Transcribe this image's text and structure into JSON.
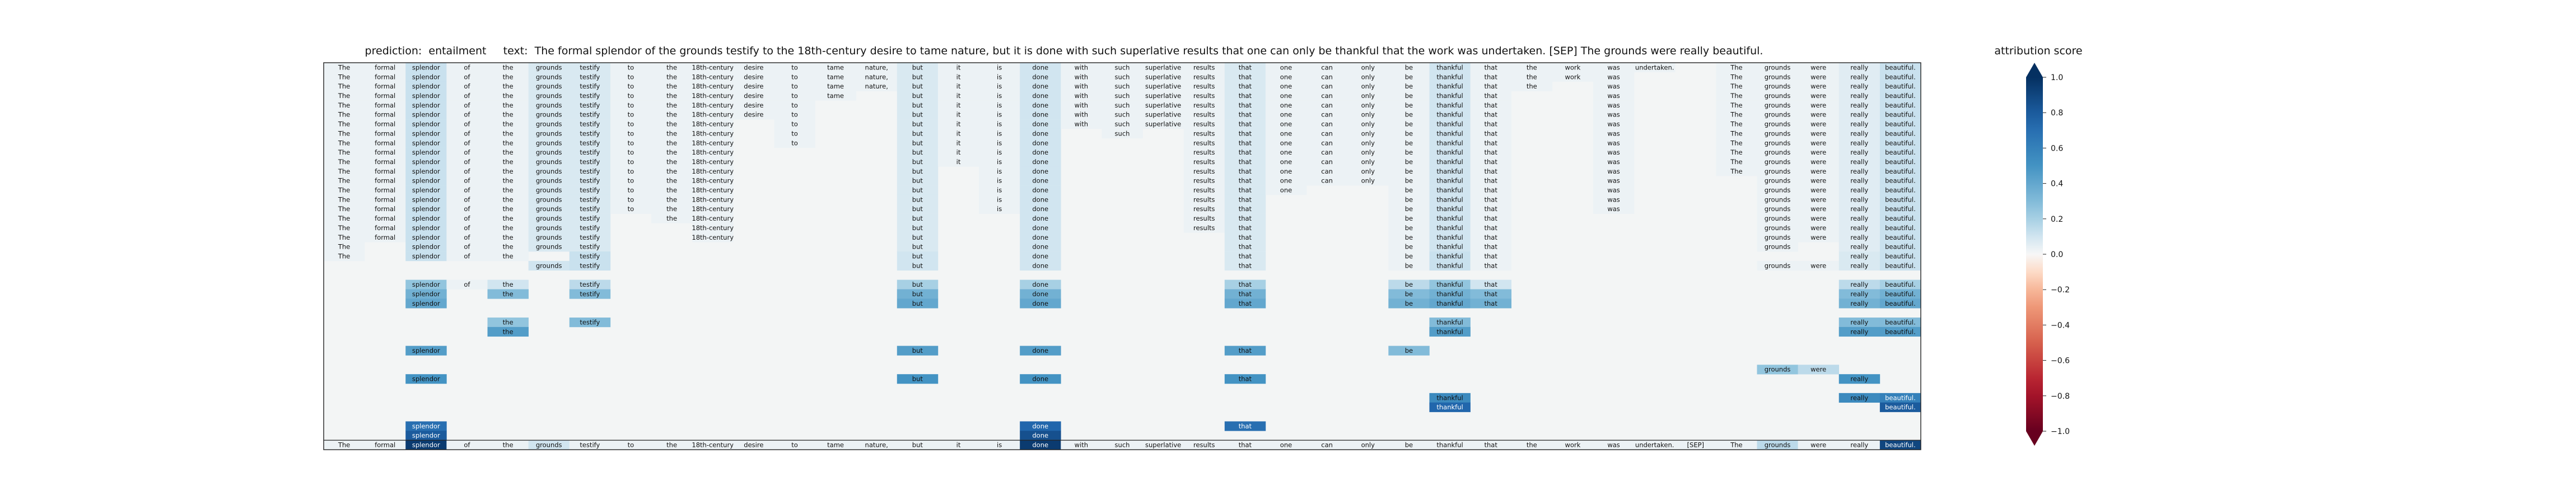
{
  "chart_data": {
    "type": "heatmap",
    "title": {
      "prediction_label": "prediction:",
      "prediction": "entailment",
      "text_label": "text:",
      "text": "The formal splendor of the grounds testify to the 18th-century desire to tame nature, but it is done with such superlative results that one can only be thankful that the work was undertaken. [SEP] The grounds were really beautiful."
    },
    "tokens": [
      "The",
      "formal",
      "splendor",
      "of",
      "the",
      "grounds",
      "testify",
      "to",
      "the",
      "18th-century",
      "desire",
      "to",
      "tame",
      "nature,",
      "but",
      "it",
      "is",
      "done",
      "with",
      "such",
      "superlative",
      "results",
      "that",
      "one",
      "can",
      "only",
      "be",
      "thankful",
      "that",
      "the",
      "work",
      "was",
      "undertaken.",
      "[SEP]",
      "The",
      "grounds",
      "were",
      "really",
      "beautiful."
    ],
    "colorbar": {
      "label": "attribution score",
      "range": [
        -1.0,
        1.0
      ],
      "ticks": [
        "1.0",
        "0.8",
        "0.6",
        "0.4",
        "0.2",
        "0.0",
        "−0.2",
        "−0.4",
        "−0.6",
        "−0.8",
        "−1.0"
      ]
    },
    "rows": [
      {
        "present": [
          0,
          1,
          2,
          3,
          4,
          5,
          6,
          7,
          8,
          9,
          10,
          11,
          12,
          13,
          14,
          15,
          16,
          17,
          18,
          19,
          20,
          21,
          22,
          23,
          24,
          25,
          26,
          27,
          28,
          29,
          30,
          31,
          32,
          34,
          35,
          36,
          37,
          38
        ],
        "scores": {
          "2": 0.12,
          "5": 0.08,
          "6": 0.08,
          "14": 0.08,
          "17": 0.1,
          "22": 0.08,
          "27": 0.1,
          "37": 0.06,
          "38": 0.12
        }
      },
      {
        "present": [
          0,
          1,
          2,
          3,
          4,
          5,
          6,
          7,
          8,
          9,
          10,
          11,
          12,
          13,
          14,
          15,
          16,
          17,
          18,
          19,
          20,
          21,
          22,
          23,
          24,
          25,
          26,
          27,
          28,
          29,
          30,
          31,
          34,
          35,
          36,
          37,
          38
        ],
        "scores": {
          "2": 0.12,
          "5": 0.08,
          "6": 0.08,
          "14": 0.08,
          "17": 0.1,
          "22": 0.08,
          "27": 0.1,
          "37": 0.06,
          "38": 0.12
        }
      },
      {
        "present": [
          0,
          1,
          2,
          3,
          4,
          5,
          6,
          7,
          8,
          9,
          10,
          11,
          12,
          13,
          14,
          15,
          16,
          17,
          18,
          19,
          20,
          21,
          22,
          23,
          24,
          25,
          26,
          27,
          28,
          29,
          31,
          34,
          35,
          36,
          37,
          38
        ],
        "scores": {
          "2": 0.12,
          "5": 0.08,
          "6": 0.08,
          "14": 0.08,
          "17": 0.1,
          "22": 0.08,
          "27": 0.1,
          "37": 0.06,
          "38": 0.12
        }
      },
      {
        "present": [
          0,
          1,
          2,
          3,
          4,
          5,
          6,
          7,
          8,
          9,
          10,
          11,
          12,
          14,
          15,
          16,
          17,
          18,
          19,
          20,
          21,
          22,
          23,
          24,
          25,
          26,
          27,
          28,
          31,
          34,
          35,
          36,
          37,
          38
        ],
        "scores": {
          "2": 0.12,
          "5": 0.08,
          "6": 0.08,
          "14": 0.08,
          "17": 0.1,
          "22": 0.08,
          "27": 0.1,
          "37": 0.06,
          "38": 0.12
        }
      },
      {
        "present": [
          0,
          1,
          2,
          3,
          4,
          5,
          6,
          7,
          8,
          9,
          10,
          11,
          14,
          15,
          16,
          17,
          18,
          19,
          20,
          21,
          22,
          23,
          24,
          25,
          26,
          27,
          28,
          31,
          34,
          35,
          36,
          37,
          38
        ],
        "scores": {
          "2": 0.12,
          "5": 0.08,
          "6": 0.08,
          "14": 0.08,
          "17": 0.1,
          "22": 0.08,
          "27": 0.1,
          "37": 0.06,
          "38": 0.12
        }
      },
      {
        "present": [
          0,
          1,
          2,
          3,
          4,
          5,
          6,
          7,
          8,
          9,
          10,
          11,
          14,
          15,
          16,
          17,
          18,
          19,
          20,
          21,
          22,
          23,
          24,
          25,
          26,
          27,
          28,
          31,
          34,
          35,
          36,
          37,
          38
        ],
        "scores": {
          "2": 0.12,
          "5": 0.08,
          "6": 0.08,
          "14": 0.08,
          "17": 0.1,
          "22": 0.08,
          "27": 0.1,
          "37": 0.06,
          "38": 0.12
        }
      },
      {
        "present": [
          0,
          1,
          2,
          3,
          4,
          5,
          6,
          7,
          8,
          9,
          11,
          14,
          15,
          16,
          17,
          18,
          19,
          20,
          21,
          22,
          23,
          24,
          25,
          26,
          27,
          28,
          31,
          34,
          35,
          36,
          37,
          38
        ],
        "scores": {
          "2": 0.12,
          "5": 0.08,
          "6": 0.08,
          "14": 0.08,
          "17": 0.1,
          "22": 0.08,
          "27": 0.1,
          "37": 0.06,
          "38": 0.12
        }
      },
      {
        "present": [
          0,
          1,
          2,
          3,
          4,
          5,
          6,
          7,
          8,
          9,
          11,
          14,
          15,
          16,
          17,
          19,
          21,
          22,
          23,
          24,
          25,
          26,
          27,
          28,
          31,
          34,
          35,
          36,
          37,
          38
        ],
        "scores": {
          "2": 0.12,
          "5": 0.08,
          "6": 0.08,
          "14": 0.08,
          "17": 0.1,
          "22": 0.08,
          "27": 0.1,
          "37": 0.06,
          "38": 0.12
        }
      },
      {
        "present": [
          0,
          1,
          2,
          3,
          4,
          5,
          6,
          7,
          8,
          9,
          11,
          14,
          15,
          16,
          17,
          21,
          22,
          23,
          24,
          25,
          26,
          27,
          28,
          31,
          34,
          35,
          36,
          37,
          38
        ],
        "scores": {
          "2": 0.12,
          "5": 0.08,
          "6": 0.08,
          "14": 0.08,
          "17": 0.1,
          "22": 0.08,
          "27": 0.1,
          "37": 0.06,
          "38": 0.12
        }
      },
      {
        "present": [
          0,
          1,
          2,
          3,
          4,
          5,
          6,
          7,
          8,
          9,
          14,
          15,
          16,
          17,
          21,
          22,
          23,
          24,
          25,
          26,
          27,
          28,
          31,
          34,
          35,
          36,
          37,
          38
        ],
        "scores": {
          "2": 0.12,
          "5": 0.08,
          "6": 0.08,
          "14": 0.08,
          "17": 0.1,
          "22": 0.08,
          "27": 0.1,
          "37": 0.06,
          "38": 0.12
        }
      },
      {
        "present": [
          0,
          1,
          2,
          3,
          4,
          5,
          6,
          7,
          8,
          9,
          14,
          15,
          16,
          17,
          21,
          22,
          23,
          24,
          25,
          26,
          27,
          28,
          31,
          34,
          35,
          36,
          37,
          38
        ],
        "scores": {
          "2": 0.12,
          "5": 0.08,
          "6": 0.08,
          "14": 0.08,
          "17": 0.1,
          "22": 0.08,
          "27": 0.1,
          "37": 0.06,
          "38": 0.12
        }
      },
      {
        "present": [
          0,
          1,
          2,
          3,
          4,
          5,
          6,
          7,
          8,
          9,
          14,
          16,
          17,
          21,
          22,
          23,
          24,
          25,
          26,
          27,
          28,
          31,
          34,
          35,
          36,
          37,
          38
        ],
        "scores": {
          "2": 0.12,
          "5": 0.08,
          "6": 0.08,
          "14": 0.08,
          "17": 0.1,
          "22": 0.08,
          "27": 0.1,
          "37": 0.06,
          "38": 0.12
        }
      },
      {
        "present": [
          0,
          1,
          2,
          3,
          4,
          5,
          6,
          7,
          8,
          9,
          14,
          16,
          17,
          21,
          22,
          23,
          24,
          25,
          26,
          27,
          28,
          31,
          35,
          36,
          37,
          38
        ],
        "scores": {
          "2": 0.12,
          "5": 0.08,
          "6": 0.08,
          "14": 0.08,
          "17": 0.1,
          "22": 0.08,
          "27": 0.1,
          "37": 0.06,
          "38": 0.12
        }
      },
      {
        "present": [
          0,
          1,
          2,
          3,
          4,
          5,
          6,
          7,
          8,
          9,
          14,
          16,
          17,
          21,
          22,
          23,
          26,
          27,
          28,
          31,
          35,
          36,
          37,
          38
        ],
        "scores": {
          "2": 0.12,
          "5": 0.08,
          "6": 0.08,
          "14": 0.08,
          "17": 0.1,
          "22": 0.08,
          "27": 0.1,
          "37": 0.06,
          "38": 0.12
        }
      },
      {
        "present": [
          0,
          1,
          2,
          3,
          4,
          5,
          6,
          7,
          8,
          9,
          14,
          16,
          17,
          21,
          22,
          26,
          27,
          28,
          31,
          35,
          36,
          37,
          38
        ],
        "scores": {
          "2": 0.12,
          "5": 0.08,
          "6": 0.08,
          "14": 0.08,
          "17": 0.1,
          "22": 0.08,
          "27": 0.1,
          "37": 0.06,
          "38": 0.12
        }
      },
      {
        "present": [
          0,
          1,
          2,
          3,
          4,
          5,
          6,
          7,
          8,
          9,
          14,
          16,
          17,
          21,
          22,
          26,
          27,
          28,
          31,
          35,
          36,
          37,
          38
        ],
        "scores": {
          "2": 0.12,
          "5": 0.08,
          "6": 0.08,
          "14": 0.08,
          "17": 0.1,
          "22": 0.08,
          "27": 0.1,
          "37": 0.06,
          "38": 0.12
        }
      },
      {
        "present": [
          0,
          1,
          2,
          3,
          4,
          5,
          6,
          8,
          9,
          14,
          17,
          21,
          22,
          26,
          27,
          28,
          35,
          36,
          37,
          38
        ],
        "scores": {
          "2": 0.12,
          "5": 0.08,
          "6": 0.08,
          "14": 0.08,
          "17": 0.1,
          "22": 0.08,
          "27": 0.1,
          "37": 0.06,
          "38": 0.12
        }
      },
      {
        "present": [
          0,
          1,
          2,
          3,
          4,
          5,
          6,
          9,
          14,
          17,
          21,
          22,
          26,
          27,
          28,
          35,
          36,
          37,
          38
        ],
        "scores": {
          "2": 0.12,
          "5": 0.08,
          "6": 0.08,
          "14": 0.08,
          "17": 0.1,
          "22": 0.08,
          "27": 0.1,
          "37": 0.06,
          "38": 0.12
        }
      },
      {
        "present": [
          0,
          1,
          2,
          3,
          4,
          5,
          6,
          9,
          14,
          17,
          22,
          26,
          27,
          28,
          35,
          36,
          37,
          38
        ],
        "scores": {
          "2": 0.12,
          "5": 0.08,
          "6": 0.08,
          "14": 0.08,
          "17": 0.1,
          "22": 0.08,
          "27": 0.1,
          "37": 0.06,
          "38": 0.12
        }
      },
      {
        "present": [
          0,
          2,
          3,
          4,
          5,
          6,
          14,
          17,
          22,
          26,
          27,
          28,
          35,
          37,
          38
        ],
        "scores": {
          "2": 0.12,
          "5": 0.08,
          "6": 0.08,
          "14": 0.08,
          "17": 0.1,
          "22": 0.08,
          "27": 0.1,
          "37": 0.06,
          "38": 0.12
        }
      },
      {
        "present": [
          0,
          2,
          3,
          4,
          6,
          14,
          17,
          22,
          26,
          27,
          28,
          37,
          38
        ],
        "scores": {
          "2": 0.12,
          "6": 0.12,
          "14": 0.1,
          "17": 0.1,
          "22": 0.08,
          "27": 0.12,
          "37": 0.08,
          "38": 0.12
        }
      },
      {
        "present": [
          5,
          6,
          14,
          17,
          22,
          26,
          27,
          28,
          35,
          36,
          37,
          38
        ],
        "scores": {
          "5": 0.1,
          "6": 0.12,
          "14": 0.1,
          "17": 0.1,
          "22": 0.08,
          "27": 0.12,
          "37": 0.08,
          "38": 0.12
        }
      },
      {
        "present": [],
        "scores": {}
      },
      {
        "present": [
          2,
          3,
          4,
          6,
          14,
          17,
          22,
          26,
          27,
          28,
          37,
          38
        ],
        "scores": {
          "2": 0.25,
          "4": 0.1,
          "6": 0.15,
          "14": 0.2,
          "17": 0.2,
          "22": 0.2,
          "26": 0.15,
          "27": 0.25,
          "28": 0.1,
          "37": 0.15,
          "38": 0.2
        }
      },
      {
        "present": [
          2,
          4,
          6,
          14,
          17,
          22,
          26,
          27,
          28,
          37,
          38
        ],
        "scores": {
          "2": 0.35,
          "4": 0.3,
          "6": 0.3,
          "14": 0.35,
          "17": 0.35,
          "22": 0.35,
          "26": 0.3,
          "27": 0.35,
          "28": 0.3,
          "37": 0.3,
          "38": 0.35
        }
      },
      {
        "present": [
          2,
          14,
          17,
          22,
          26,
          27,
          28,
          37,
          38
        ],
        "scores": {
          "2": 0.4,
          "14": 0.4,
          "17": 0.4,
          "22": 0.4,
          "26": 0.35,
          "27": 0.4,
          "28": 0.35,
          "37": 0.35,
          "38": 0.4
        }
      },
      {
        "present": [],
        "scores": {}
      },
      {
        "present": [
          4,
          6,
          27,
          37,
          38
        ],
        "scores": {
          "4": 0.25,
          "6": 0.3,
          "27": 0.3,
          "37": 0.3,
          "38": 0.3
        }
      },
      {
        "present": [
          4,
          27,
          37,
          38
        ],
        "scores": {
          "4": 0.45,
          "27": 0.45,
          "37": 0.45,
          "38": 0.45
        }
      },
      {
        "present": [],
        "scores": {}
      },
      {
        "present": [
          2,
          14,
          17,
          22,
          26
        ],
        "scores": {
          "2": 0.45,
          "14": 0.45,
          "17": 0.45,
          "22": 0.45,
          "26": 0.3
        }
      },
      {
        "present": [],
        "scores": {}
      },
      {
        "present": [
          35,
          36
        ],
        "scores": {
          "35": 0.25,
          "36": 0.15
        }
      },
      {
        "present": [
          2,
          14,
          17,
          22,
          37
        ],
        "scores": {
          "2": 0.5,
          "14": 0.5,
          "17": 0.5,
          "22": 0.5,
          "37": 0.5
        }
      },
      {
        "present": [],
        "scores": {}
      },
      {
        "present": [
          27,
          37,
          38
        ],
        "scores": {
          "27": 0.55,
          "37": 0.55,
          "38": 0.6
        }
      },
      {
        "present": [
          27,
          38
        ],
        "scores": {
          "27": 0.75,
          "38": 0.8
        }
      },
      {
        "present": [],
        "scores": {}
      },
      {
        "present": [
          2,
          17,
          22
        ],
        "scores": {
          "2": 0.7,
          "17": 0.75,
          "22": 0.7
        }
      },
      {
        "present": [
          2,
          17
        ],
        "scores": {
          "2": 0.8,
          "17": 0.85
        }
      },
      {
        "present": [
          0,
          1,
          2,
          3,
          4,
          5,
          6,
          7,
          8,
          9,
          10,
          11,
          12,
          13,
          14,
          15,
          16,
          17,
          18,
          19,
          20,
          21,
          22,
          23,
          24,
          25,
          26,
          27,
          28,
          29,
          30,
          31,
          32,
          33,
          34,
          35,
          36,
          37,
          38
        ],
        "scores": {
          "2": 0.95,
          "5": 0.1,
          "17": 0.95,
          "35": 0.15,
          "38": 0.9
        }
      }
    ]
  }
}
